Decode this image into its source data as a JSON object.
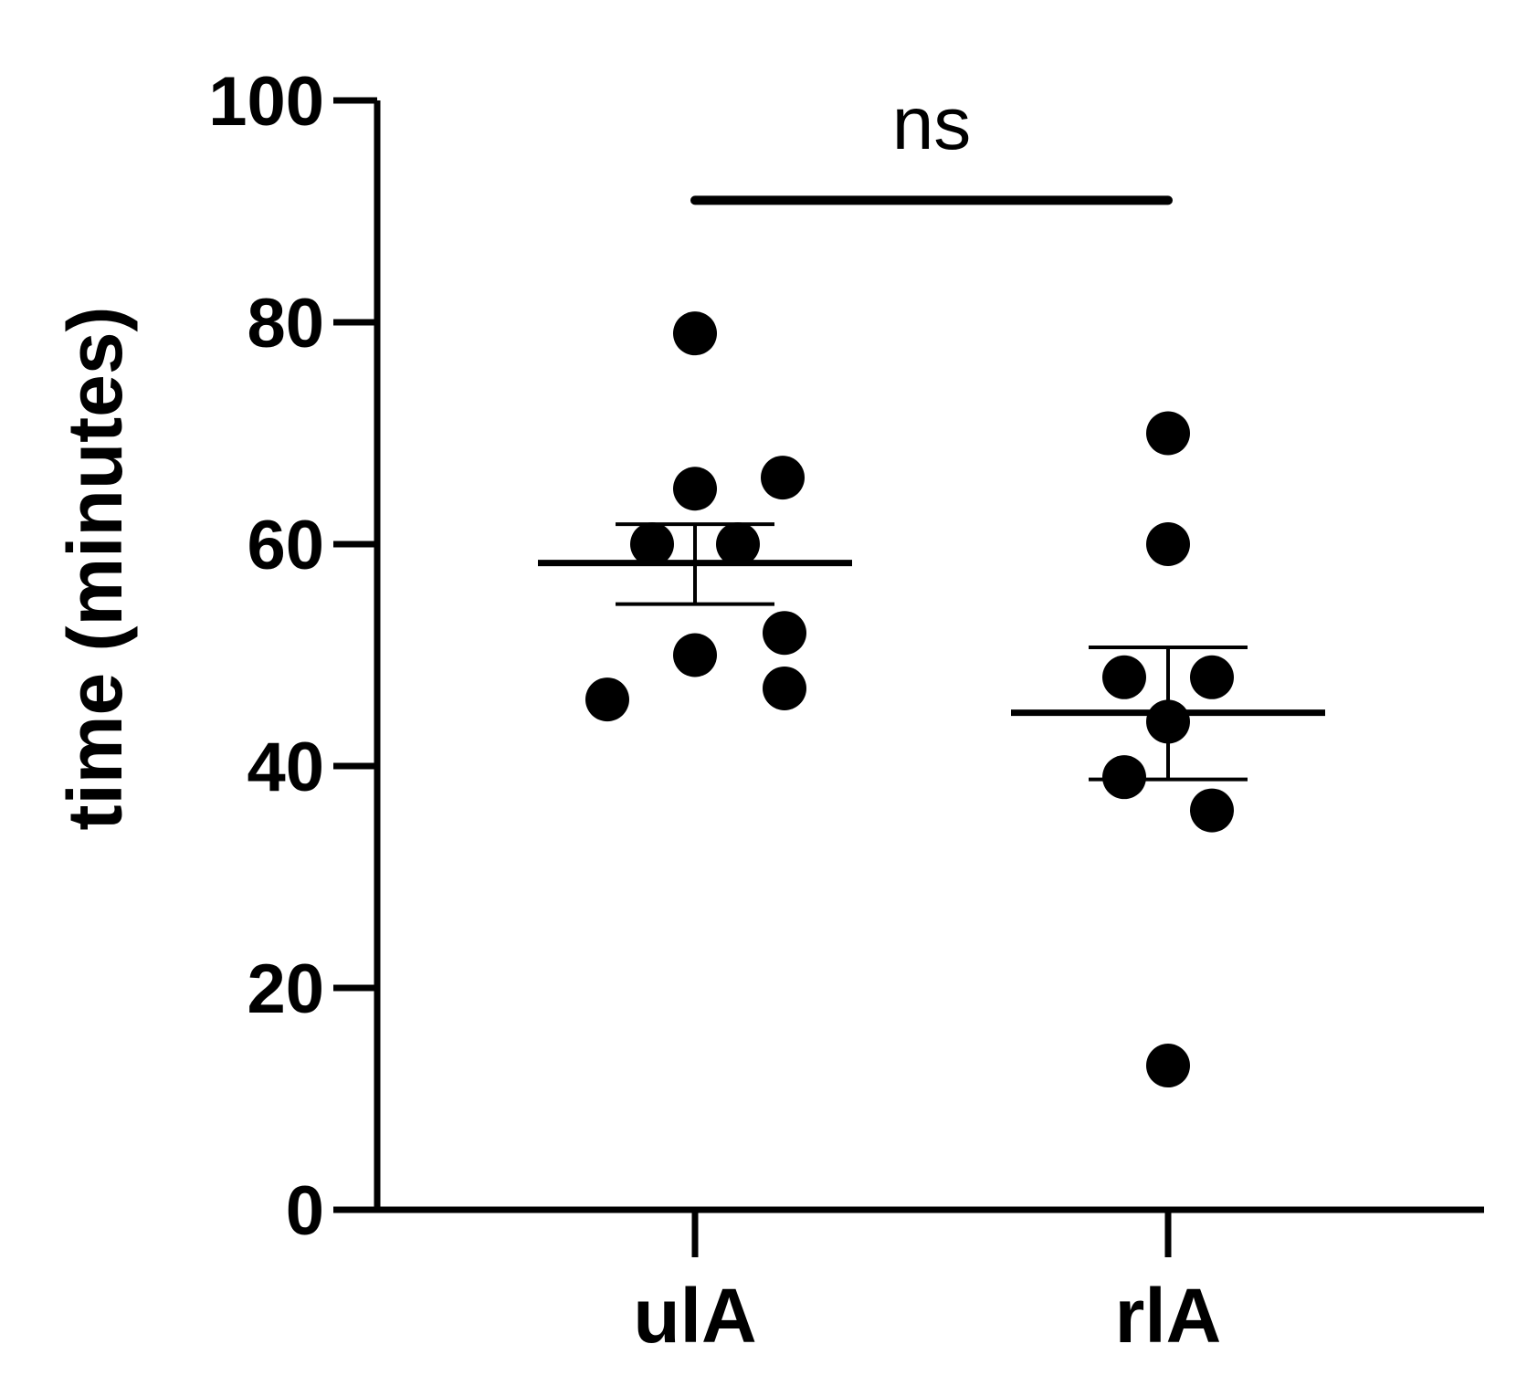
{
  "chart_data": {
    "type": "scatter",
    "title": "",
    "xlabel": "",
    "ylabel": "time (minutes)",
    "ylim": [
      0,
      100
    ],
    "yticks": [
      0,
      20,
      40,
      60,
      80,
      100
    ],
    "categories": [
      "ulA",
      "rlA"
    ],
    "series": [
      {
        "values": [
          79,
          65,
          66,
          60,
          60,
          52,
          50,
          47,
          46
        ],
        "mean": 58.3,
        "sem_low": 54.6,
        "sem_high": 61.8
      },
      {
        "values": [
          70,
          60,
          48,
          48,
          44,
          39,
          36,
          13
        ],
        "mean": 44.8,
        "sem_low": 38.8,
        "sem_high": 50.7
      }
    ],
    "annotations": [
      {
        "text": "ns",
        "type": "significance-bracket",
        "from": "ulA",
        "to": "rlA",
        "y": 91
      }
    ],
    "grid": false,
    "colors": {
      "points": "#000000",
      "axis": "#000000"
    }
  }
}
